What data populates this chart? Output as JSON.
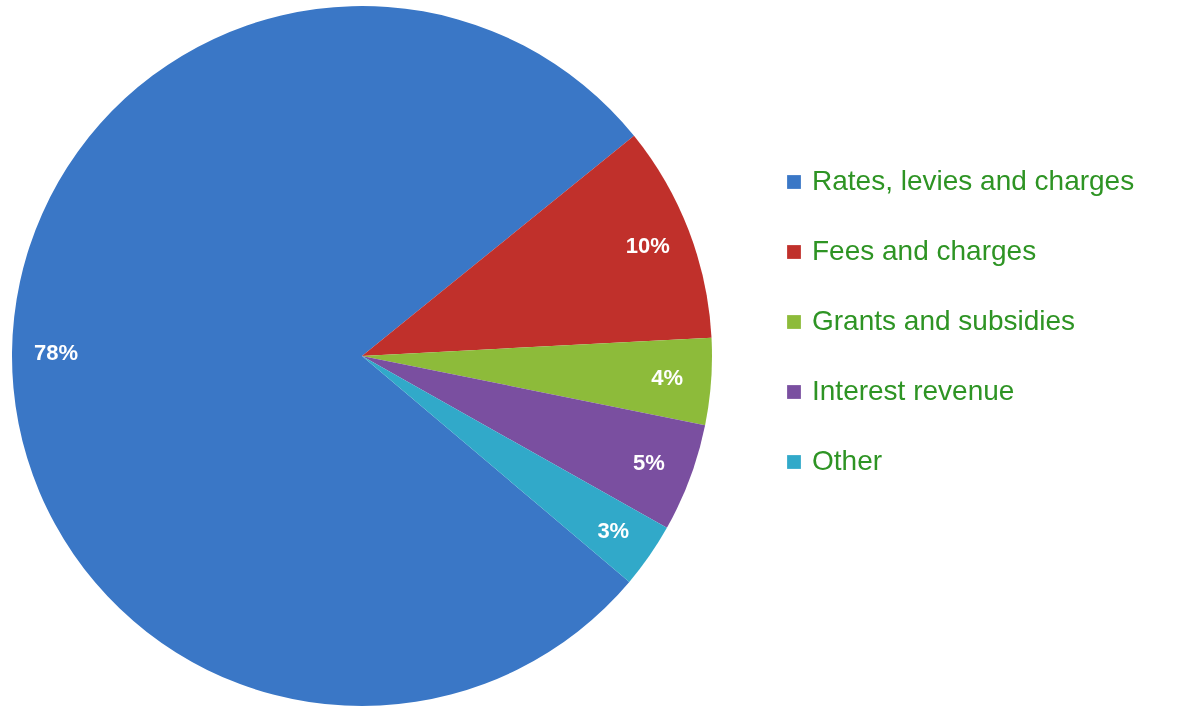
{
  "chart_data": {
    "type": "pie",
    "categories": [
      "Rates, levies and charges",
      "Fees and charges",
      "Grants and subsidies",
      "Interest revenue",
      "Other"
    ],
    "values": [
      78,
      10,
      4,
      5,
      3
    ],
    "colors": [
      "#3a77c6",
      "#c0302b",
      "#8dbb3a",
      "#7a4fa0",
      "#31a9c9"
    ],
    "value_labels": [
      "78%",
      "10%",
      "4%",
      "5%",
      "3%"
    ],
    "legend": "right"
  }
}
